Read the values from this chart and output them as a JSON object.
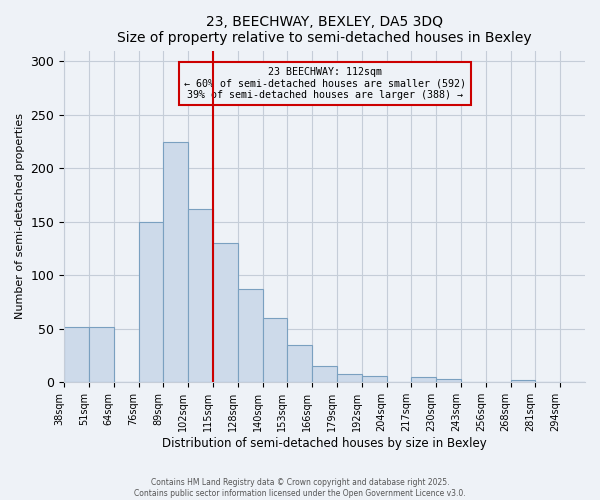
{
  "title": "23, BEECHWAY, BEXLEY, DA5 3DQ",
  "subtitle": "Size of property relative to semi-detached houses in Bexley",
  "xlabel": "Distribution of semi-detached houses by size in Bexley",
  "ylabel": "Number of semi-detached properties",
  "bar_labels": [
    "38sqm",
    "51sqm",
    "64sqm",
    "76sqm",
    "89sqm",
    "102sqm",
    "115sqm",
    "128sqm",
    "140sqm",
    "153sqm",
    "166sqm",
    "179sqm",
    "192sqm",
    "204sqm",
    "217sqm",
    "230sqm",
    "243sqm",
    "256sqm",
    "268sqm",
    "281sqm",
    "294sqm"
  ],
  "bar_values": [
    52,
    52,
    0,
    150,
    225,
    162,
    130,
    87,
    60,
    35,
    15,
    8,
    6,
    0,
    5,
    3,
    0,
    0,
    2,
    0,
    0
  ],
  "bar_color": "#cddaea",
  "bar_edge_color": "#7aA0C0",
  "vline_x": 6.0,
  "vline_color": "#cc0000",
  "annotation_title": "23 BEECHWAY: 112sqm",
  "annotation_line1": "← 60% of semi-detached houses are smaller (592)",
  "annotation_line2": "39% of semi-detached houses are larger (388) →",
  "annotation_box_color": "#cc0000",
  "ylim": [
    0,
    310
  ],
  "yticks": [
    0,
    50,
    100,
    150,
    200,
    250,
    300
  ],
  "footer1": "Contains HM Land Registry data © Crown copyright and database right 2025.",
  "footer2": "Contains public sector information licensed under the Open Government Licence v3.0.",
  "background_color": "#eef2f7",
  "grid_color": "#c5cdd8"
}
